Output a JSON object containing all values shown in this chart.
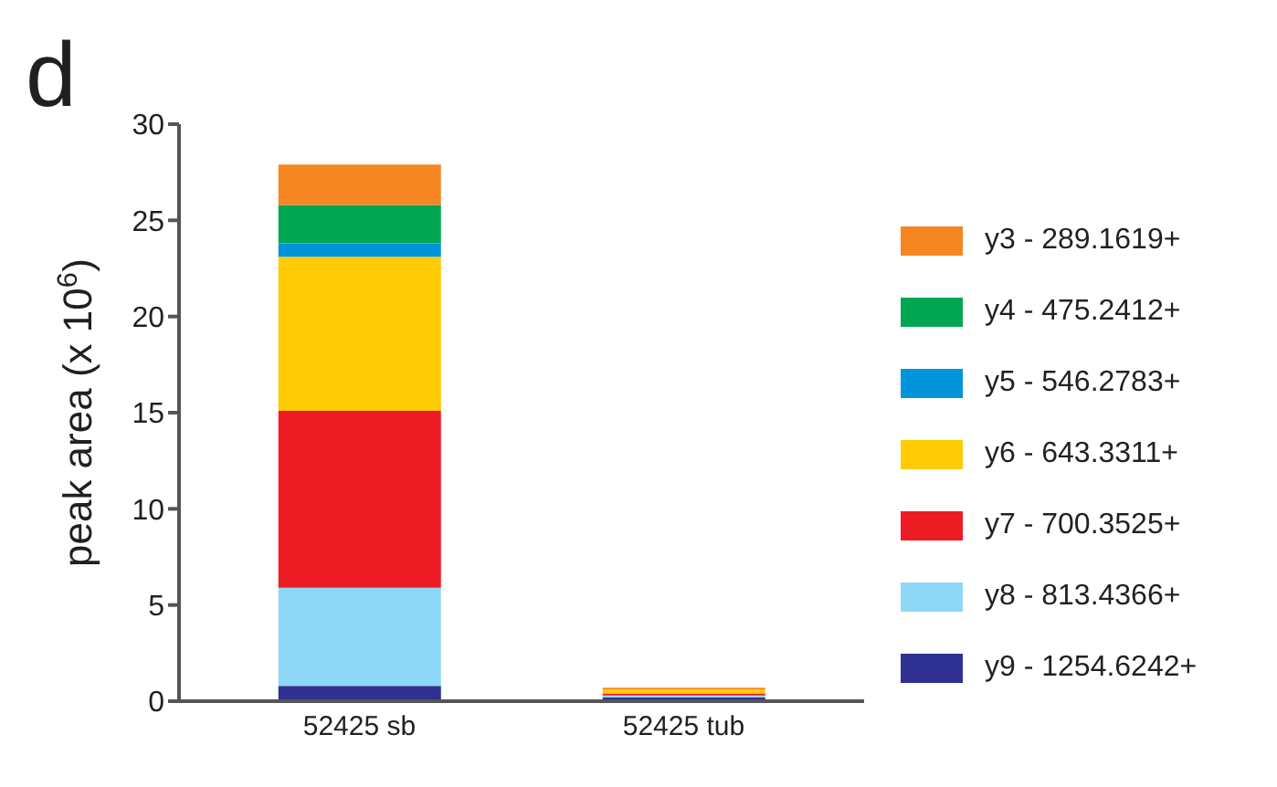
{
  "chart_data": {
    "type": "bar",
    "stacked": true,
    "ylabel": "peak area (x 10$^{6}$)",
    "annotations": [
      "d"
    ],
    "categories": [
      "52425 sb",
      "52425 tub"
    ],
    "series": [
      {
        "name": "y9 - 1254.6242+",
        "color": "#2e3192",
        "values": [
          0.8,
          0.2
        ]
      },
      {
        "name": "y8 - 813.4366+",
        "color": "#8fd8f8",
        "values": [
          5.1,
          0.1
        ]
      },
      {
        "name": "y7 - 700.3525+",
        "color": "#ed1c24",
        "values": [
          9.2,
          0.1
        ]
      },
      {
        "name": "y6 - 643.3311+",
        "color": "#ffcb05",
        "values": [
          8.0,
          0.2
        ]
      },
      {
        "name": "y5 - 546.2783+",
        "color": "#0095da",
        "values": [
          0.7,
          0.0
        ]
      },
      {
        "name": "y4 - 475.2412+",
        "color": "#00a651",
        "values": [
          2.0,
          0.0
        ]
      },
      {
        "name": "y3 - 289.1619+",
        "color": "#f68622",
        "values": [
          2.1,
          0.1
        ]
      }
    ],
    "ylim": [
      0,
      30
    ],
    "yticks": [
      0,
      5,
      10,
      15,
      20,
      25,
      30
    ],
    "grid": false,
    "legend": "right"
  }
}
